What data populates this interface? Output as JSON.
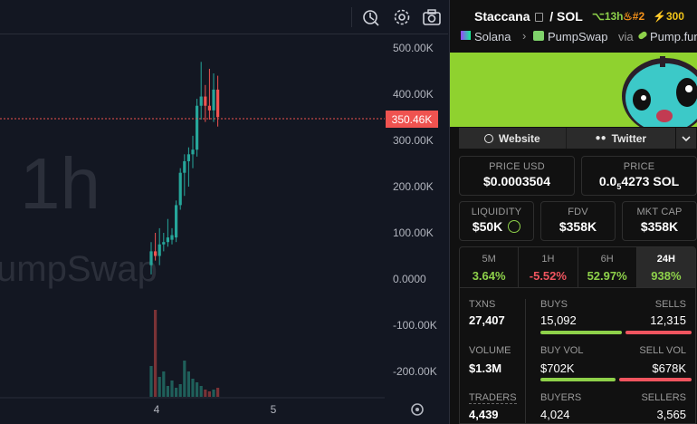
{
  "chart": {
    "watermark_timeframe": "1h",
    "watermark_name": "umpSwap",
    "price_tag": "350.46K",
    "y_ticks": [
      "500.00K",
      "400.00K",
      "300.00K",
      "200.00K",
      "100.00K",
      "0.0000",
      "-100.00K",
      "-200.00K"
    ],
    "x_ticks": [
      "4",
      "5"
    ]
  },
  "chart_data": {
    "type": "candlestick",
    "title": "",
    "xlabel": "",
    "ylabel": "",
    "ylim": [
      -250000,
      540000
    ],
    "y_ticks": [
      500000,
      400000,
      300000,
      200000,
      100000,
      0,
      -100000,
      -200000
    ],
    "x_ticks": [
      "4",
      "5"
    ],
    "last_price": 350460,
    "candles": [
      {
        "o": 30000,
        "h": 80000,
        "l": 10000,
        "c": 60000
      },
      {
        "o": 60000,
        "h": 100000,
        "l": 40000,
        "c": 50000
      },
      {
        "o": 50000,
        "h": 110000,
        "l": 30000,
        "c": 75000
      },
      {
        "o": 75000,
        "h": 100000,
        "l": 60000,
        "c": 80000
      },
      {
        "o": 80000,
        "h": 130000,
        "l": 70000,
        "c": 90000
      },
      {
        "o": 85000,
        "h": 110000,
        "l": 75000,
        "c": 95000
      },
      {
        "o": 90000,
        "h": 170000,
        "l": 80000,
        "c": 160000
      },
      {
        "o": 160000,
        "h": 240000,
        "l": 150000,
        "c": 230000
      },
      {
        "o": 230000,
        "h": 270000,
        "l": 180000,
        "c": 255000
      },
      {
        "o": 255000,
        "h": 285000,
        "l": 200000,
        "c": 270000
      },
      {
        "o": 270000,
        "h": 310000,
        "l": 240000,
        "c": 280000
      },
      {
        "o": 280000,
        "h": 390000,
        "l": 265000,
        "c": 375000
      },
      {
        "o": 375000,
        "h": 470000,
        "l": 345000,
        "c": 395000
      },
      {
        "o": 395000,
        "h": 420000,
        "l": 340000,
        "c": 375000
      },
      {
        "o": 375000,
        "h": 455000,
        "l": 345000,
        "c": 365000
      },
      {
        "o": 365000,
        "h": 445000,
        "l": 340000,
        "c": 410000
      },
      {
        "o": 410000,
        "h": 440000,
        "l": 330000,
        "c": 350460
      }
    ],
    "volumes": [
      1,
      1,
      1,
      1,
      2,
      1,
      1,
      1,
      2,
      1,
      1,
      1,
      2,
      1,
      1,
      1,
      1
    ],
    "volume_note_only_relative": true
  },
  "panel": {
    "symbol": "Staccana",
    "quote": "/ SOL",
    "age": "13h",
    "rank": "#2",
    "boost": "300",
    "chain": "Solana",
    "dex": "PumpSwap",
    "via": "via",
    "launchpad": "Pump.fun",
    "website_label": "Website",
    "twitter_label": "Twitter",
    "price_usd_label": "PRICE USD",
    "price_usd": "$0.0003504",
    "price_label": "PRICE",
    "price_sol_lead": "0.0",
    "price_sol_sub": "5",
    "price_sol_rest": "4273 SOL",
    "liquidity_label": "LIQUIDITY",
    "liquidity": "$50K",
    "fdv_label": "FDV",
    "fdv": "$358K",
    "mcap_label": "MKT CAP",
    "mcap": "$358K",
    "timeframes": [
      {
        "label": "5M",
        "change": "3.64%",
        "dir": "up"
      },
      {
        "label": "1H",
        "change": "-5.52%",
        "dir": "down"
      },
      {
        "label": "6H",
        "change": "52.97%",
        "dir": "up"
      },
      {
        "label": "24H",
        "change": "938%",
        "dir": "up"
      }
    ],
    "txns_label": "TXNS",
    "txns": "27,407",
    "buys_label": "BUYS",
    "buys": "15,092",
    "sells_label": "SELLS",
    "sells": "12,315",
    "volume_label": "VOLUME",
    "volume": "$1.3M",
    "buy_vol_label": "BUY VOL",
    "buy_vol": "$702K",
    "sell_vol_label": "SELL VOL",
    "sell_vol": "$678K",
    "traders_label": "TRADERS",
    "traders": "4,439",
    "buyers_label": "BUYERS",
    "buyers": "4,024",
    "sellers_label": "SELLERS",
    "sellers": "3,565",
    "buys_fraction": 0.55,
    "buy_vol_fraction": 0.51
  },
  "colors": {
    "up": "#26a69a",
    "down": "#ef5350",
    "green_text": "#8ed14a",
    "red_text": "#f0555f",
    "banner": "#8fd22f"
  }
}
